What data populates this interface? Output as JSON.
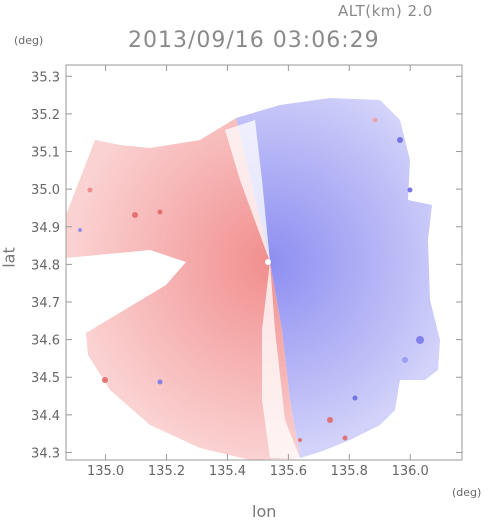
{
  "header": {
    "altitude_label": "ALT(km) 2.0",
    "timestamp": "2013/09/16 03:06:29"
  },
  "axes": {
    "y_unit": "(deg)",
    "x_unit": "(deg)",
    "y_title": "lat",
    "x_title": "lon",
    "x_ticks": [
      "135.0",
      "135.2",
      "135.4",
      "135.6",
      "135.8",
      "136.0"
    ],
    "y_ticks": [
      "35.3",
      "35.2",
      "35.1",
      "35.0",
      "34.9",
      "34.8",
      "34.7",
      "34.6",
      "34.5",
      "34.4",
      "34.3"
    ],
    "xlim": [
      134.87,
      136.17
    ],
    "ylim": [
      34.28,
      35.33
    ]
  },
  "map": {
    "type": "doppler radial velocity PPI",
    "center": {
      "lon": 135.53,
      "lat": 34.82
    },
    "colors": {
      "positive": "#f4a0a0",
      "negative": "#a0a0f4",
      "zero": "#ffffff"
    }
  }
}
